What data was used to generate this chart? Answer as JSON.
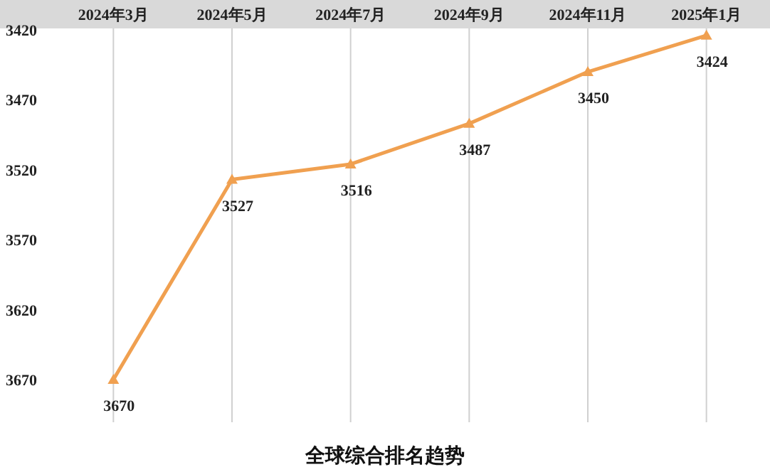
{
  "chart_data": {
    "type": "line",
    "title": "全球综合排名趋势",
    "categories": [
      "2024年3月",
      "2024年5月",
      "2024年7月",
      "2024年9月",
      "2024年11月",
      "2025年1月"
    ],
    "series": [
      {
        "color": "#f0a050",
        "values": [
          3670,
          3527,
          3516,
          3487,
          3450,
          3424
        ]
      }
    ],
    "ylim": [
      3670,
      3420
    ],
    "yticks": [
      3420,
      3470,
      3520,
      3570,
      3620,
      3670
    ],
    "grid": "x",
    "marker": "triangle",
    "line_style": "solid",
    "data_labels": true
  }
}
